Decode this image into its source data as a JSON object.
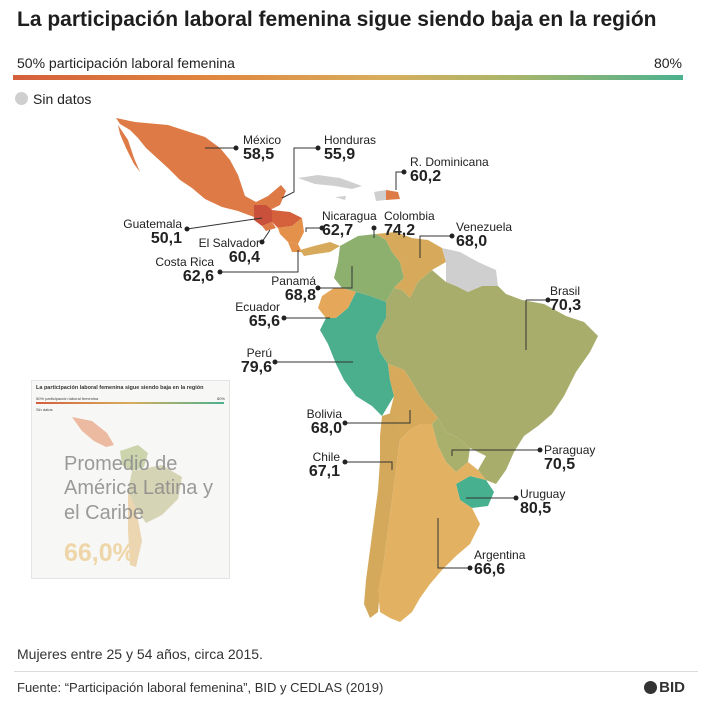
{
  "title": "La participación laboral femenina sigue siendo baja en la región",
  "legend": {
    "min_label": "50% participación laboral femenina",
    "max_label": "80%",
    "no_data_label": "Sin datos",
    "colors": {
      "low": "#d45f3c",
      "mid": "#d8ad5c",
      "high": "#4bb18f",
      "no_data": "#cfcfcf"
    }
  },
  "countries": [
    {
      "name": "México",
      "value": "58,5"
    },
    {
      "name": "Honduras",
      "value": "55,9"
    },
    {
      "name": "R. Dominicana",
      "value": "60,2"
    },
    {
      "name": "Guatemala",
      "value": "50,1"
    },
    {
      "name": "El Salvador",
      "value": "60,4"
    },
    {
      "name": "Nicaragua",
      "value": "62,7"
    },
    {
      "name": "Colombia",
      "value": "74,2"
    },
    {
      "name": "Venezuela",
      "value": "68,0"
    },
    {
      "name": "Costa Rica",
      "value": "62,6"
    },
    {
      "name": "Panamá",
      "value": "68,8"
    },
    {
      "name": "Brasil",
      "value": "70,3"
    },
    {
      "name": "Ecuador",
      "value": "65,6"
    },
    {
      "name": "Perú",
      "value": "79,6"
    },
    {
      "name": "Bolivia",
      "value": "68,0"
    },
    {
      "name": "Paraguay",
      "value": "70,5"
    },
    {
      "name": "Chile",
      "value": "67,1"
    },
    {
      "name": "Uruguay",
      "value": "80,5"
    },
    {
      "name": "Argentina",
      "value": "66,6"
    }
  ],
  "average": {
    "label": "Promedio de América Latina y el Caribe",
    "value": "66,0%"
  },
  "inset": {
    "title": "La participación laboral femenina sigue siendo baja en la región",
    "min_label": "50% participación laboral femenina",
    "max_label": "80%",
    "no_data_label": "Sin datos"
  },
  "footer": {
    "note": "Mujeres entre 25 y 54 años, circa 2015.",
    "source": "Fuente: “Participación laboral femenina”, BID y CEDLAS (2019)",
    "logo": "BID"
  }
}
